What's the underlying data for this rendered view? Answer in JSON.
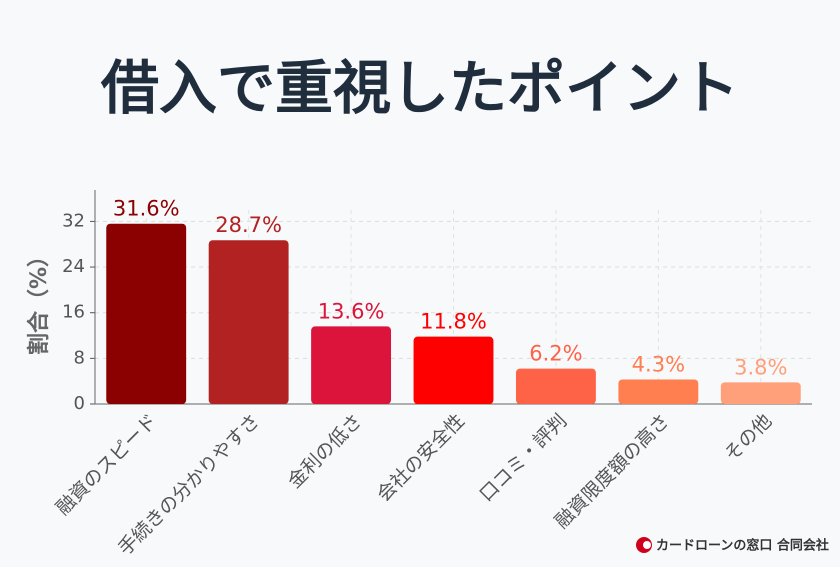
{
  "chart_data": {
    "type": "bar",
    "title": "借入で重視したポイント",
    "ylabel": "割合（%）",
    "categories": [
      "融資のスピード",
      "手続きの分かりやすさ",
      "金利の低さ",
      "会社の安全性",
      "口コミ・評判",
      "融資限度額の高さ",
      "その他"
    ],
    "values": [
      31.6,
      28.7,
      13.6,
      11.8,
      6.2,
      4.3,
      3.8
    ],
    "value_labels": [
      "31.6%",
      "28.7%",
      "13.6%",
      "11.8%",
      "6.2%",
      "4.3%",
      "3.8%"
    ],
    "colors": [
      "#8b0000",
      "#b22222",
      "#dc143c",
      "#ff0000",
      "#ff6347",
      "#ff7f50",
      "#ffa07a"
    ],
    "ylim": [
      0,
      34
    ],
    "yticks": [
      0,
      8,
      16,
      24,
      32
    ],
    "grid": true
  },
  "footer": {
    "brand": "カードローンの窓口 合同会社"
  }
}
